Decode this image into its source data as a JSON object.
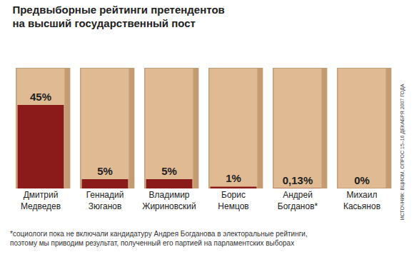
{
  "chart_data": {
    "type": "bar",
    "title": "Предвыборные рейтинги претендентов\nна высший государственный пост",
    "categories": [
      "Дмитрий Медведев",
      "Геннадий Зюганов",
      "Владимир Жириновский",
      "Борис Немцов",
      "Андрей Богданов*",
      "Михаил Касьянов"
    ],
    "values": [
      45,
      5,
      5,
      1,
      0.13,
      0
    ],
    "value_labels": [
      "45%",
      "5%",
      "5%",
      "1%",
      "0,13%",
      "0%"
    ],
    "color": "#8b1a1a",
    "ylim": [
      0,
      65
    ],
    "data_labels": true,
    "tick_labels": "x",
    "note": "*социологи пока не включали кандидатуру Андрея Богданова в электоральные рейтинги,\nпоэтому мы приводим результат, полученный его партией на парламентских выборах",
    "source": "ИСТОЧНИК: ВЦИОМ, ОПРОС 15–16 ДЕКАБРЯ 2007 ГОДА"
  }
}
